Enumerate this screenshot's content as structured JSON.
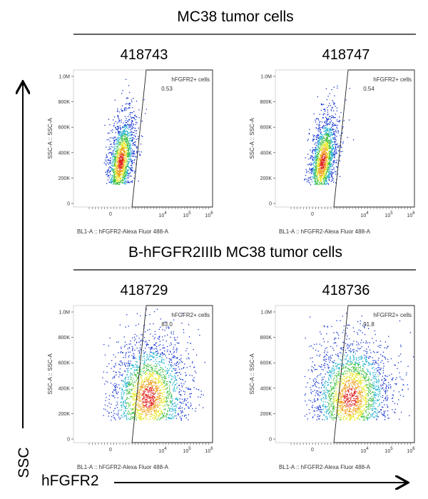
{
  "sections": [
    {
      "title": "MC38 tumor cells",
      "panels": [
        {
          "sample": "418743",
          "gate_label": "hFGFR2+ cells",
          "gate_value": "0.53"
        },
        {
          "sample": "418747",
          "gate_label": "hFGFR2+ cells",
          "gate_value": "0.54"
        }
      ]
    },
    {
      "title": "B-hFGFR2IIIb  MC38 tumor cells",
      "panels": [
        {
          "sample": "418729",
          "gate_label": "hFGFR2+ cells",
          "gate_value": "83.0"
        },
        {
          "sample": "418736",
          "gate_label": "hFGFR2+ cells",
          "gate_value": "91.8"
        }
      ]
    }
  ],
  "y_axis_title": "SSC-A :: SSC-A",
  "x_axis_title": "BL1-A :: hFGFR2-Alexa Fluor   488-A",
  "y_tick_labels": [
    "0",
    "200K",
    "400K",
    "600K",
    "800K",
    "1.0M"
  ],
  "x_tick_zero": "0",
  "x_tick_powers": [
    {
      "base": "10",
      "exp": "4"
    },
    {
      "base": "10",
      "exp": "5"
    },
    {
      "base": "10",
      "exp": "6"
    }
  ],
  "big_y_label": "SSC",
  "big_x_label": "hFGFR2"
}
